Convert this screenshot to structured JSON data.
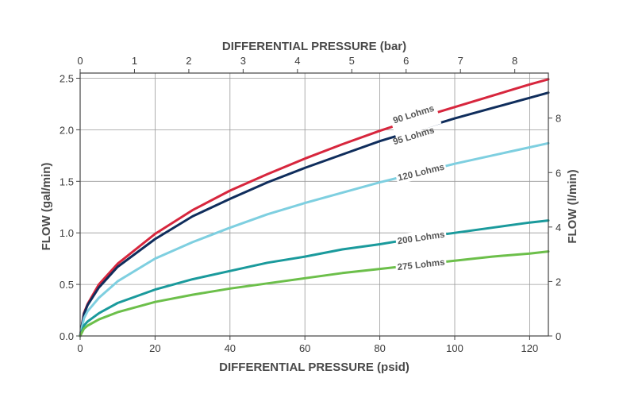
{
  "chart_data": {
    "type": "line",
    "x_label_bottom": "DIFFERENTIAL PRESSURE (psid)",
    "x_label_top": "DIFFERENTIAL PRESSURE (bar)",
    "y_label_left": "FLOW (gal/min)",
    "y_label_right": "FLOW (l/min)",
    "xlim": [
      0,
      125
    ],
    "ylim": [
      0,
      2.55
    ],
    "x_ticks": [
      0,
      20,
      40,
      60,
      80,
      100,
      120
    ],
    "y_ticks": [
      0.0,
      0.5,
      1.0,
      1.5,
      2.0,
      2.5
    ],
    "y_tick_labels": [
      "0.0",
      "0.5",
      "1.0",
      "1.5",
      "2.0",
      "2.5"
    ],
    "top_ticks": [
      0,
      1,
      2,
      3,
      4,
      5,
      6,
      7,
      8
    ],
    "right_ticks": [
      0,
      2,
      4,
      6,
      8
    ],
    "grid": true,
    "series": [
      {
        "name": "90 Lohms",
        "color": "#d7263d",
        "x": [
          0,
          1,
          2,
          5,
          10,
          20,
          30,
          40,
          50,
          60,
          70,
          80,
          90,
          100,
          110,
          120,
          125
        ],
        "y": [
          0.0,
          0.22,
          0.31,
          0.5,
          0.7,
          0.99,
          1.22,
          1.41,
          1.57,
          1.72,
          1.86,
          1.99,
          2.11,
          2.22,
          2.33,
          2.44,
          2.49
        ]
      },
      {
        "name": "95 Lohms",
        "color": "#0f2d5c",
        "x": [
          0,
          1,
          2,
          5,
          10,
          20,
          30,
          40,
          50,
          60,
          70,
          80,
          90,
          100,
          110,
          120,
          125
        ],
        "y": [
          0.0,
          0.21,
          0.3,
          0.47,
          0.67,
          0.94,
          1.16,
          1.33,
          1.49,
          1.63,
          1.76,
          1.89,
          2.0,
          2.11,
          2.21,
          2.31,
          2.36
        ]
      },
      {
        "name": "120 Lohms",
        "color": "#7ecfe0",
        "x": [
          0,
          1,
          2,
          5,
          10,
          20,
          30,
          40,
          50,
          60,
          70,
          80,
          90,
          100,
          110,
          120,
          125
        ],
        "y": [
          0.0,
          0.17,
          0.24,
          0.37,
          0.53,
          0.75,
          0.91,
          1.05,
          1.18,
          1.29,
          1.39,
          1.49,
          1.58,
          1.67,
          1.75,
          1.83,
          1.87
        ]
      },
      {
        "name": "200 Lohms",
        "color": "#1a9a9c",
        "x": [
          0,
          1,
          2,
          5,
          10,
          20,
          30,
          40,
          50,
          60,
          70,
          80,
          90,
          100,
          110,
          120,
          125
        ],
        "y": [
          0.0,
          0.1,
          0.14,
          0.22,
          0.32,
          0.45,
          0.55,
          0.63,
          0.71,
          0.77,
          0.84,
          0.89,
          0.95,
          1.0,
          1.05,
          1.1,
          1.12
        ]
      },
      {
        "name": "275 Lohms",
        "color": "#6cbf4a",
        "x": [
          0,
          1,
          2,
          5,
          10,
          20,
          30,
          40,
          50,
          60,
          70,
          80,
          90,
          100,
          110,
          120,
          125
        ],
        "y": [
          0.0,
          0.07,
          0.1,
          0.16,
          0.23,
          0.33,
          0.4,
          0.46,
          0.51,
          0.56,
          0.61,
          0.65,
          0.69,
          0.73,
          0.77,
          0.8,
          0.82
        ]
      }
    ]
  }
}
